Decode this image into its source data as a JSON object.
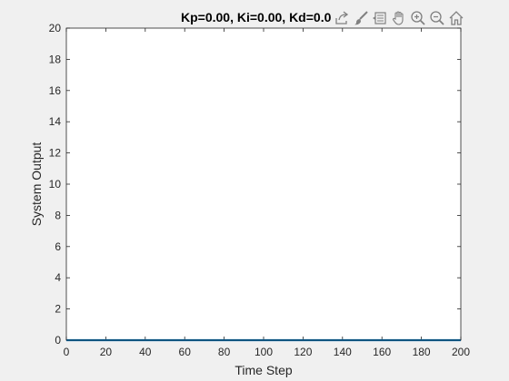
{
  "window": {
    "background": "#f0f0f0"
  },
  "toolbar": {
    "icons": [
      "export-icon",
      "brush-icon",
      "data-tips-icon",
      "pan-hand-icon",
      "zoom-in-icon",
      "zoom-out-icon",
      "home-icon"
    ],
    "icon_color": "#808080"
  },
  "colors": {
    "line": "#0072bd",
    "axes_bg": "#ffffff",
    "axes_edge": "#262626",
    "text": "#262626"
  },
  "chart_data": {
    "type": "line",
    "title": "Kp=0.00, Ki=0.00, Kd=0.0",
    "xlabel": "Time Step",
    "ylabel": "System Output",
    "xlim": [
      0,
      200
    ],
    "ylim": [
      0,
      20
    ],
    "xticks": [
      0,
      20,
      40,
      60,
      80,
      100,
      120,
      140,
      160,
      180,
      200
    ],
    "yticks": [
      0,
      2,
      4,
      6,
      8,
      10,
      12,
      14,
      16,
      18,
      20
    ],
    "grid": false,
    "series": [
      {
        "x": [
          0,
          200
        ],
        "y": [
          0,
          0
        ],
        "color": "#0072bd"
      }
    ]
  }
}
